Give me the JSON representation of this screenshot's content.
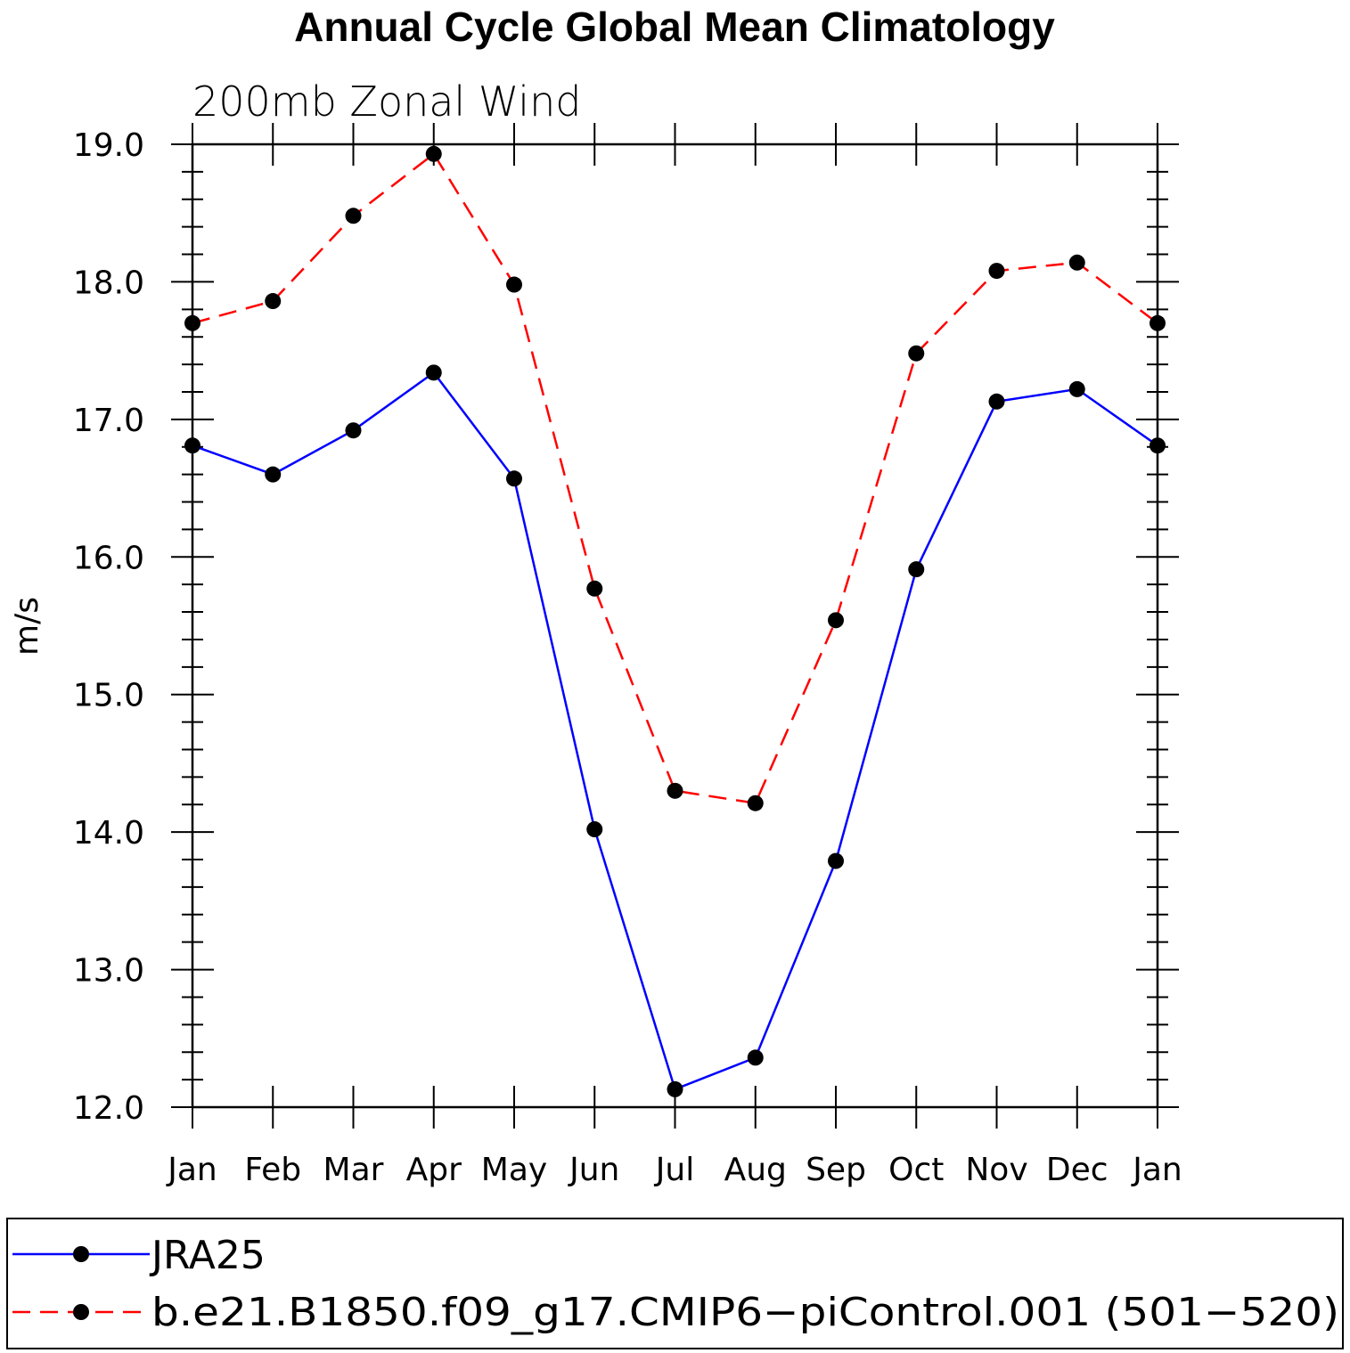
{
  "chart_data": {
    "type": "line",
    "title": "Annual Cycle Global Mean Climatology",
    "subtitle": "200mb Zonal Wind",
    "ylabel": "m/s",
    "xlabel": "",
    "categories": [
      "Jan",
      "Feb",
      "Mar",
      "Apr",
      "May",
      "Jun",
      "Jul",
      "Aug",
      "Sep",
      "Oct",
      "Nov",
      "Dec",
      "Jan"
    ],
    "ylim": [
      12.0,
      19.0
    ],
    "yticks": [
      "12.0",
      "13.0",
      "14.0",
      "15.0",
      "16.0",
      "17.0",
      "18.0",
      "19.0"
    ],
    "grid": false,
    "legend_position": "bottom",
    "series": [
      {
        "name": "JRA25",
        "color": "#0000ff",
        "dash": "solid",
        "marker": "filled-circle",
        "values": [
          16.81,
          16.6,
          16.92,
          17.34,
          16.57,
          14.02,
          12.13,
          12.36,
          13.79,
          15.91,
          17.13,
          17.22,
          16.81
        ]
      },
      {
        "name": "b.e21.B1850.f09_g17.CMIP6−piControl.001 (501−520)",
        "color": "#ff0000",
        "dash": "dashed",
        "marker": "filled-circle",
        "values": [
          17.7,
          17.86,
          18.48,
          18.93,
          17.98,
          15.77,
          14.3,
          14.21,
          15.54,
          17.48,
          18.08,
          18.14,
          17.7
        ]
      }
    ]
  }
}
